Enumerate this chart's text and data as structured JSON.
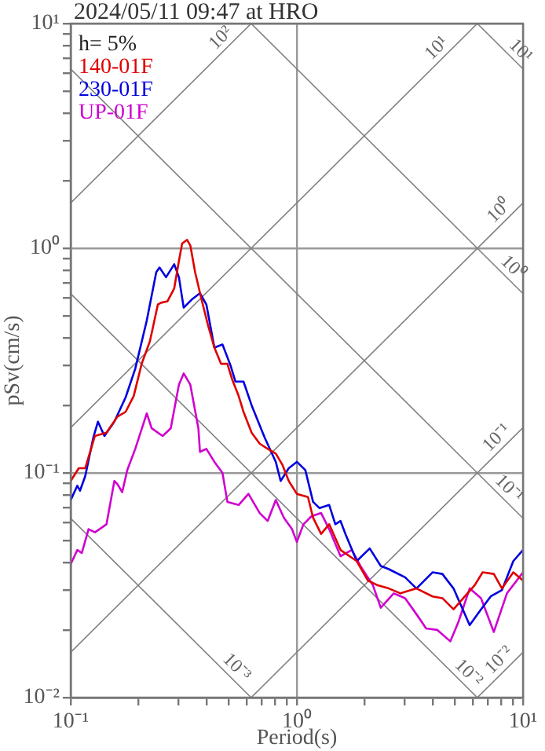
{
  "chart_data": {
    "type": "line",
    "title": "2024/05/11 09:47 at HRO",
    "xlabel": "Period(s)",
    "ylabel": "pSv(cm/s)",
    "log": "xy",
    "grid": true,
    "legend": "top left",
    "marker": "none",
    "xlim": [
      0.1,
      10
    ],
    "ylim": [
      0.01,
      10
    ],
    "xticks": [
      {
        "value": 0.1,
        "label": "10⁻¹"
      },
      {
        "value": 0.2,
        "label": null
      },
      {
        "value": 0.3,
        "label": null
      },
      {
        "value": 0.4,
        "label": null
      },
      {
        "value": 0.5,
        "label": null
      },
      {
        "value": 0.6,
        "label": null
      },
      {
        "value": 0.7,
        "label": null
      },
      {
        "value": 0.8,
        "label": null
      },
      {
        "value": 0.9,
        "label": null
      },
      {
        "value": 1,
        "label": "10⁰"
      },
      {
        "value": 2,
        "label": null
      },
      {
        "value": 3,
        "label": null
      },
      {
        "value": 4,
        "label": null
      },
      {
        "value": 5,
        "label": null
      },
      {
        "value": 6,
        "label": null
      },
      {
        "value": 7,
        "label": null
      },
      {
        "value": 8,
        "label": null
      },
      {
        "value": 9,
        "label": null
      },
      {
        "value": 10,
        "label": "10¹"
      }
    ],
    "yticks": [
      {
        "value": 0.01,
        "label": "10⁻²"
      },
      {
        "value": 0.02,
        "label": null
      },
      {
        "value": 0.03,
        "label": null
      },
      {
        "value": 0.04,
        "label": null
      },
      {
        "value": 0.05,
        "label": null
      },
      {
        "value": 0.06,
        "label": null
      },
      {
        "value": 0.07,
        "label": null
      },
      {
        "value": 0.08,
        "label": null
      },
      {
        "value": 0.09,
        "label": null
      },
      {
        "value": 0.1,
        "label": "10⁻¹"
      },
      {
        "value": 0.2,
        "label": null
      },
      {
        "value": 0.3,
        "label": null
      },
      {
        "value": 0.4,
        "label": null
      },
      {
        "value": 0.5,
        "label": null
      },
      {
        "value": 0.6,
        "label": null
      },
      {
        "value": 0.7,
        "label": null
      },
      {
        "value": 0.8,
        "label": null
      },
      {
        "value": 0.9,
        "label": null
      },
      {
        "value": 1,
        "label": "10⁰"
      },
      {
        "value": 2,
        "label": null
      },
      {
        "value": 3,
        "label": null
      },
      {
        "value": 4,
        "label": null
      },
      {
        "value": 5,
        "label": null
      },
      {
        "value": 6,
        "label": null
      },
      {
        "value": 7,
        "label": null
      },
      {
        "value": 8,
        "label": null
      },
      {
        "value": 9,
        "label": null
      },
      {
        "value": 10,
        "label": "10¹"
      }
    ],
    "series": [
      {
        "name": "140-01F",
        "color": "#e00000",
        "x": [
          0.1,
          0.1086,
          0.116,
          0.128,
          0.144,
          0.161,
          0.175,
          0.19,
          0.206,
          0.224,
          0.243,
          0.251,
          0.268,
          0.287,
          0.301,
          0.311,
          0.327,
          0.338,
          0.355,
          0.379,
          0.405,
          0.432,
          0.462,
          0.493,
          0.518,
          0.553,
          0.581,
          0.631,
          0.685,
          0.743,
          0.807,
          0.862,
          0.921,
          1.0,
          1.12,
          1.18,
          1.28,
          1.39,
          1.56,
          1.84,
          2.06,
          2.28,
          2.55,
          2.87,
          3.38,
          3.98,
          4.4,
          4.93,
          5.53,
          6.11,
          6.63,
          7.43,
          8.07,
          9.06,
          10
        ],
        "values": [
          0.0921,
          0.105,
          0.105,
          0.146,
          0.151,
          0.178,
          0.187,
          0.22,
          0.306,
          0.385,
          0.562,
          0.572,
          0.581,
          0.663,
          0.877,
          1.05,
          1.09,
          1.03,
          0.782,
          0.591,
          0.454,
          0.361,
          0.306,
          0.306,
          0.26,
          0.22,
          0.187,
          0.151,
          0.135,
          0.128,
          0.122,
          0.109,
          0.0921,
          0.0807,
          0.0781,
          0.0631,
          0.0535,
          0.0591,
          0.0454,
          0.0405,
          0.0332,
          0.0316,
          0.0306,
          0.0291,
          0.0306,
          0.0282,
          0.0277,
          0.0247,
          0.0282,
          0.0316,
          0.0361,
          0.0355,
          0.0306,
          0.0361,
          0.0332
        ]
      },
      {
        "name": "230-01F",
        "color": "#0000e0",
        "x": [
          0.1,
          0.107,
          0.11,
          0.116,
          0.126,
          0.132,
          0.141,
          0.156,
          0.175,
          0.193,
          0.217,
          0.239,
          0.247,
          0.264,
          0.287,
          0.301,
          0.316,
          0.343,
          0.373,
          0.398,
          0.432,
          0.469,
          0.509,
          0.535,
          0.581,
          0.631,
          0.72,
          0.807,
          0.848,
          0.921,
          1.0,
          1.09,
          1.18,
          1.26,
          1.39,
          1.48,
          1.56,
          1.64,
          1.84,
          2.1,
          2.35,
          2.55,
          3.01,
          3.38,
          3.98,
          4.4,
          4.93,
          5.81,
          6.52,
          7.2,
          8.07,
          9.06,
          10
        ],
        "values": [
          0.0757,
          0.0877,
          0.0834,
          0.0968,
          0.144,
          0.169,
          0.146,
          0.169,
          0.217,
          0.291,
          0.477,
          0.782,
          0.821,
          0.743,
          0.849,
          0.743,
          0.544,
          0.591,
          0.631,
          0.562,
          0.361,
          0.373,
          0.301,
          0.255,
          0.255,
          0.2,
          0.144,
          0.112,
          0.0921,
          0.105,
          0.112,
          0.103,
          0.0743,
          0.0697,
          0.072,
          0.0591,
          0.0611,
          0.0535,
          0.0405,
          0.0461,
          0.0385,
          0.0373,
          0.0343,
          0.0306,
          0.0361,
          0.0355,
          0.0306,
          0.021,
          0.0247,
          0.0282,
          0.0301,
          0.0405,
          0.0454
        ]
      },
      {
        "name": "UP-01F",
        "color": "#d000d0",
        "x": [
          0.1,
          0.107,
          0.112,
          0.12,
          0.128,
          0.144,
          0.156,
          0.161,
          0.169,
          0.178,
          0.193,
          0.217,
          0.228,
          0.255,
          0.277,
          0.301,
          0.316,
          0.338,
          0.367,
          0.373,
          0.398,
          0.432,
          0.469,
          0.493,
          0.553,
          0.611,
          0.685,
          0.743,
          0.807,
          0.877,
          0.952,
          1.0,
          1.07,
          1.16,
          1.28,
          1.39,
          1.56,
          1.75,
          1.93,
          2.17,
          2.35,
          2.68,
          3.01,
          3.38,
          3.73,
          4.18,
          4.77,
          5.18,
          5.81,
          6.52,
          7.43,
          8.49,
          10
        ],
        "values": [
          0.0392,
          0.0454,
          0.044,
          0.0562,
          0.0544,
          0.0591,
          0.0921,
          0.0891,
          0.0821,
          0.103,
          0.128,
          0.184,
          0.158,
          0.146,
          0.158,
          0.247,
          0.277,
          0.247,
          0.158,
          0.124,
          0.128,
          0.112,
          0.1,
          0.0743,
          0.072,
          0.0807,
          0.0663,
          0.0611,
          0.0757,
          0.0631,
          0.0562,
          0.0493,
          0.0591,
          0.0641,
          0.0663,
          0.0562,
          0.0426,
          0.0454,
          0.0379,
          0.0316,
          0.0251,
          0.0291,
          0.0277,
          0.0235,
          0.0203,
          0.02,
          0.0178,
          0.0217,
          0.0306,
          0.0277,
          0.0196,
          0.0291,
          0.0361
        ]
      },
      {
        "color": "#808080",
        "x": [
          0.1,
          0.628
        ],
        "values": [
          1.59,
          10
        ]
      },
      {
        "color": "#808080",
        "x": [
          0.1,
          6.28
        ],
        "values": [
          0.159,
          10
        ]
      },
      {
        "color": "#808080",
        "x": [
          0.1,
          10
        ],
        "values": [
          0.0159,
          1.59
        ]
      },
      {
        "color": "#808080",
        "x": [
          0.628,
          10
        ],
        "values": [
          0.01,
          0.159
        ]
      },
      {
        "color": "#808080",
        "x": [
          6.28,
          10
        ],
        "values": [
          0.01,
          0.0159
        ]
      },
      {
        "color": "#808080",
        "x": [
          6.28,
          10
        ],
        "values": [
          10,
          6.28
        ]
      },
      {
        "color": "#808080",
        "x": [
          0.628,
          10
        ],
        "values": [
          10,
          0.628
        ]
      },
      {
        "color": "#808080",
        "x": [
          0.1,
          10
        ],
        "values": [
          6.28,
          0.0628
        ]
      },
      {
        "color": "#808080",
        "x": [
          0.1,
          6.28
        ],
        "values": [
          0.628,
          0.01
        ]
      },
      {
        "color": "#808080",
        "x": [
          0.1,
          0.628
        ],
        "values": [
          0.0628,
          0.01
        ]
      }
    ],
    "annotations": [
      "h= 5%",
      {
        "text": "10²",
        "x": 0.5,
        "y": 7.96
      },
      {
        "text": "10¹",
        "x": 4.5,
        "y": 7.16
      },
      {
        "text": "10¹",
        "x": 9,
        "y": 6.98
      },
      {
        "text": "10⁰",
        "x": 8.5,
        "y": 1.35
      },
      {
        "text": "10⁰",
        "x": 8.3,
        "y": 0.757
      },
      {
        "text": "10⁻¹",
        "x": 8.3,
        "y": 0.132
      },
      {
        "text": "10⁻¹",
        "x": 8,
        "y": 0.0785
      },
      {
        "text": "10⁻³",
        "x": 0.5,
        "y": 0.01257
      },
      {
        "text": "10⁻²",
        "x": 5.3,
        "y": 0.01186
      },
      {
        "text": "10⁻²",
        "x": 8.5,
        "y": 0.01353
      }
    ]
  }
}
